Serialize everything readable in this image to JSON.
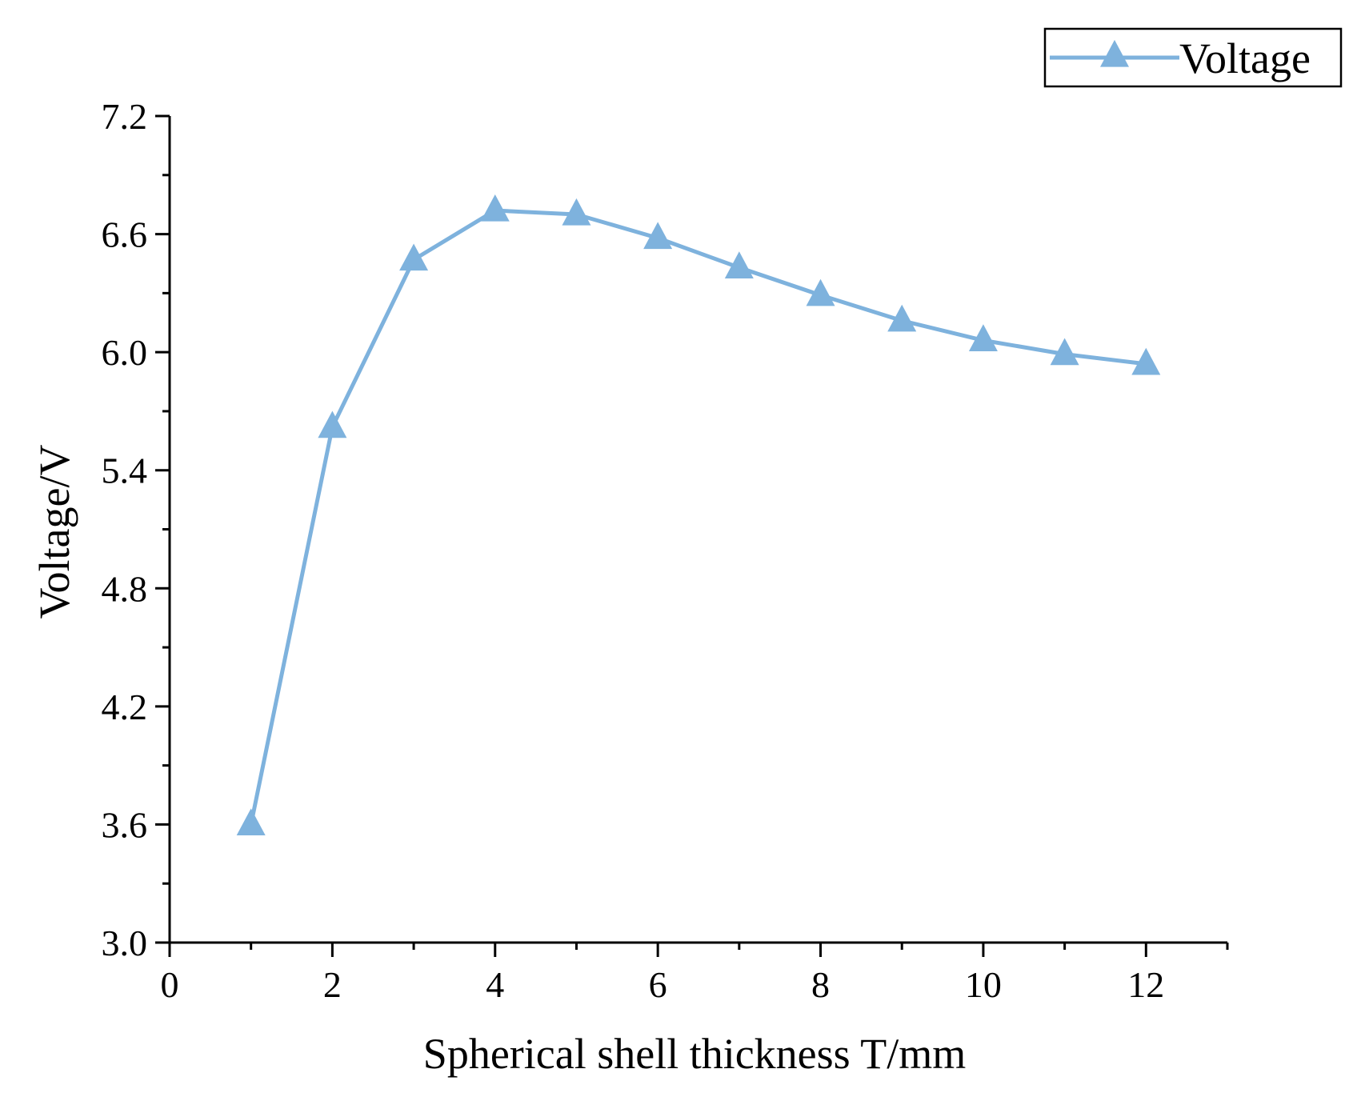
{
  "chart_data": {
    "type": "line",
    "title": "",
    "xlabel": "Spherical shell thickness T/mm",
    "ylabel": "Voltage/V",
    "xlim": [
      0,
      13
    ],
    "ylim": [
      3.0,
      7.2
    ],
    "x_ticks": [
      0,
      2,
      4,
      6,
      8,
      10,
      12
    ],
    "x_tick_labels": [
      "0",
      "2",
      "4",
      "6",
      "8",
      "10",
      "12"
    ],
    "y_ticks": [
      3.0,
      3.6,
      4.2,
      4.8,
      5.4,
      6.0,
      6.6,
      7.2
    ],
    "y_tick_labels": [
      "3.0",
      "3.6",
      "4.2",
      "4.8",
      "5.4",
      "6.0",
      "6.6",
      "7.2"
    ],
    "legend_position": "top-right",
    "grid": false,
    "series": [
      {
        "name": "Voltage",
        "color": "#7eb2dd",
        "marker": "triangle",
        "x": [
          1,
          2,
          3,
          4,
          5,
          6,
          7,
          8,
          9,
          10,
          11,
          12
        ],
        "values": [
          3.6,
          5.62,
          6.47,
          6.72,
          6.7,
          6.58,
          6.43,
          6.29,
          6.16,
          6.06,
          5.99,
          5.94
        ]
      }
    ]
  }
}
